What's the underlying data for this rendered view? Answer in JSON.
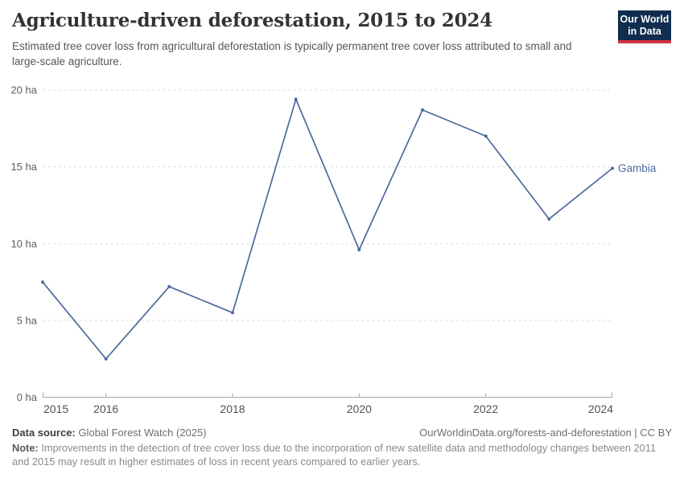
{
  "header": {
    "title": "Agriculture-driven deforestation, 2015 to 2024",
    "subtitle": "Estimated tree cover loss from agricultural deforestation is typically permanent tree cover loss attributed to small and large-scale agriculture.",
    "logo": {
      "line1": "Our World",
      "line2": "in Data"
    }
  },
  "chart_data": {
    "type": "line",
    "title": "Agriculture-driven deforestation, 2015 to 2024",
    "unit": "ha",
    "xlim": [
      2015,
      2024
    ],
    "ylim": [
      0,
      20
    ],
    "grid": "horizontal-dashed",
    "legend_position": "label-at-line-end",
    "series": [
      {
        "name": "Gambia",
        "color": "#4C6A9C",
        "x": [
          2015,
          2016,
          2017,
          2018,
          2019,
          2020,
          2021,
          2022,
          2023,
          2024
        ],
        "values": [
          7.5,
          2.5,
          7.2,
          5.5,
          19.4,
          9.6,
          18.7,
          17,
          11.6,
          14.9
        ]
      }
    ],
    "yticks": [
      {
        "value": 0,
        "label": "0 ha"
      },
      {
        "value": 5,
        "label": "5 ha"
      },
      {
        "value": 10,
        "label": "10 ha"
      },
      {
        "value": 15,
        "label": "15 ha"
      },
      {
        "value": 20,
        "label": "20 ha"
      }
    ],
    "xticks": [
      {
        "value": 2015,
        "label": "2015"
      },
      {
        "value": 2016,
        "label": "2016"
      },
      {
        "value": 2018,
        "label": "2018"
      },
      {
        "value": 2020,
        "label": "2020"
      },
      {
        "value": 2022,
        "label": "2022"
      },
      {
        "value": 2024,
        "label": "2024"
      }
    ]
  },
  "footer": {
    "datasource_label": "Data source:",
    "datasource_value": "Global Forest Watch (2025)",
    "attribution": "OurWorldinData.org/forests-and-deforestation | CC BY",
    "note_label": "Note:",
    "note_text": "Improvements in the detection of tree cover loss due to the incorporation of new satellite data and methodology changes between 2011 and 2015 may result in higher estimates of loss in recent years compared to earlier years."
  },
  "colors": {
    "line": "#4C6A9C",
    "grid": "#dcdcdc",
    "axis": "#a6a6a6",
    "logo_bg": "#102D4E",
    "logo_stripe": "#D2353C"
  }
}
